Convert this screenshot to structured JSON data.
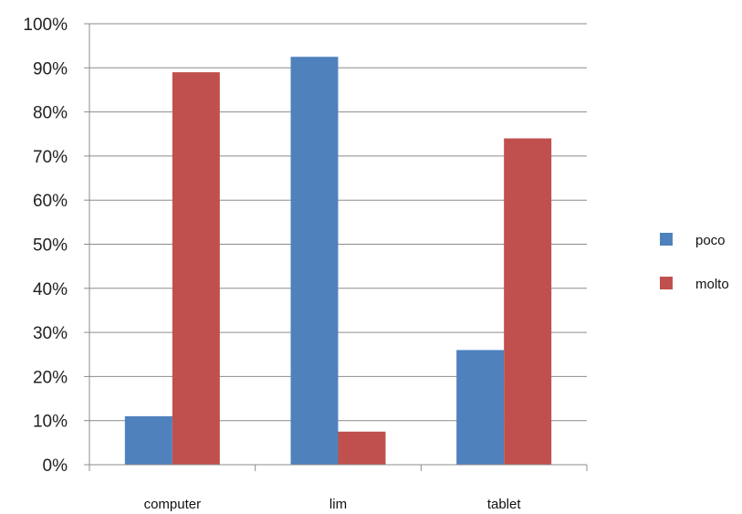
{
  "chart_data": {
    "type": "bar",
    "title": "",
    "xlabel": "",
    "ylabel": "",
    "categories": [
      "computer",
      "lim",
      "tablet"
    ],
    "series": [
      {
        "name": "poco",
        "values": [
          0.11,
          0.925,
          0.26
        ],
        "color": "#4f81bd"
      },
      {
        "name": "molto",
        "values": [
          0.89,
          0.075,
          0.74
        ],
        "color": "#c0504d"
      }
    ],
    "ylim": [
      0,
      1
    ],
    "y_ticks": [
      {
        "value": 0.0,
        "label": "0%"
      },
      {
        "value": 0.1,
        "label": "10%"
      },
      {
        "value": 0.2,
        "label": "20%"
      },
      {
        "value": 0.3,
        "label": "30%"
      },
      {
        "value": 0.4,
        "label": "40%"
      },
      {
        "value": 0.5,
        "label": "50%"
      },
      {
        "value": 0.6,
        "label": "60%"
      },
      {
        "value": 0.7,
        "label": "70%"
      },
      {
        "value": 0.8,
        "label": "80%"
      },
      {
        "value": 0.9,
        "label": "90%"
      },
      {
        "value": 1.0,
        "label": "100%"
      }
    ],
    "grid": true,
    "legend_position": "right",
    "gridline_color": "#8c8c8c",
    "axis_color": "#8c8c8c"
  }
}
